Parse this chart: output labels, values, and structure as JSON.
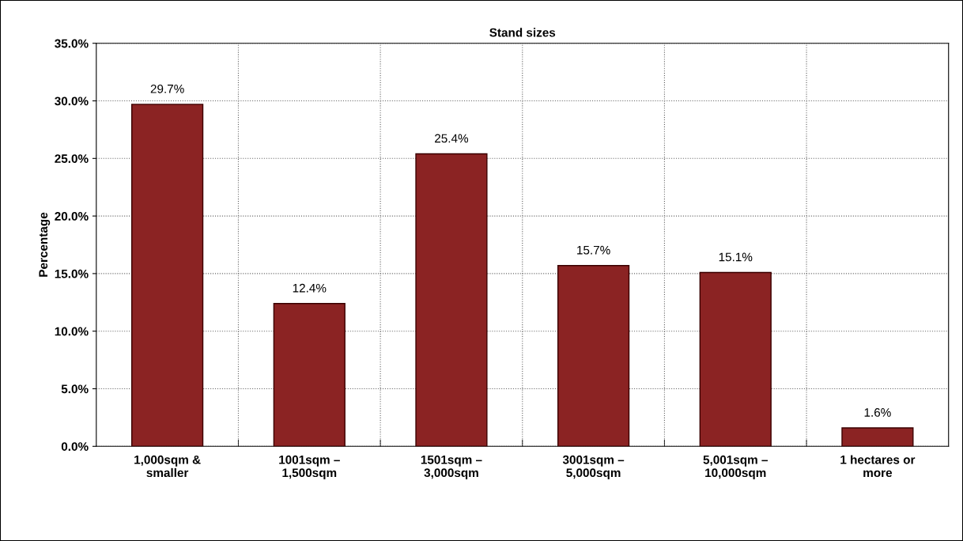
{
  "chart_data": {
    "type": "bar",
    "title": "Stand sizes",
    "ylabel": "Percentage",
    "categories": [
      "1,000sqm &\nsmaller",
      "1001sqm –\n1,500sqm",
      "1501sqm –\n3,000sqm",
      "3001sqm –\n5,000sqm",
      "5,001sqm –\n10,000sqm",
      "1 hectares or\nmore"
    ],
    "values": [
      29.7,
      12.4,
      25.4,
      15.7,
      15.1,
      1.6
    ],
    "value_labels": [
      "29.7%",
      "12.4%",
      "25.4%",
      "15.7%",
      "15.1%",
      "1.6%"
    ],
    "color": "#8b2323",
    "ylim": [
      0,
      35
    ],
    "yticks": [
      {
        "value": 0,
        "label": "0.0%"
      },
      {
        "value": 5,
        "label": "5.0%"
      },
      {
        "value": 10,
        "label": "10.0%"
      },
      {
        "value": 15,
        "label": "15.0%"
      },
      {
        "value": 20,
        "label": "20.0%"
      },
      {
        "value": 25,
        "label": "25.0%"
      },
      {
        "value": 30,
        "label": "30.0%"
      },
      {
        "value": 35,
        "label": "35.0%"
      }
    ],
    "grid": true
  }
}
